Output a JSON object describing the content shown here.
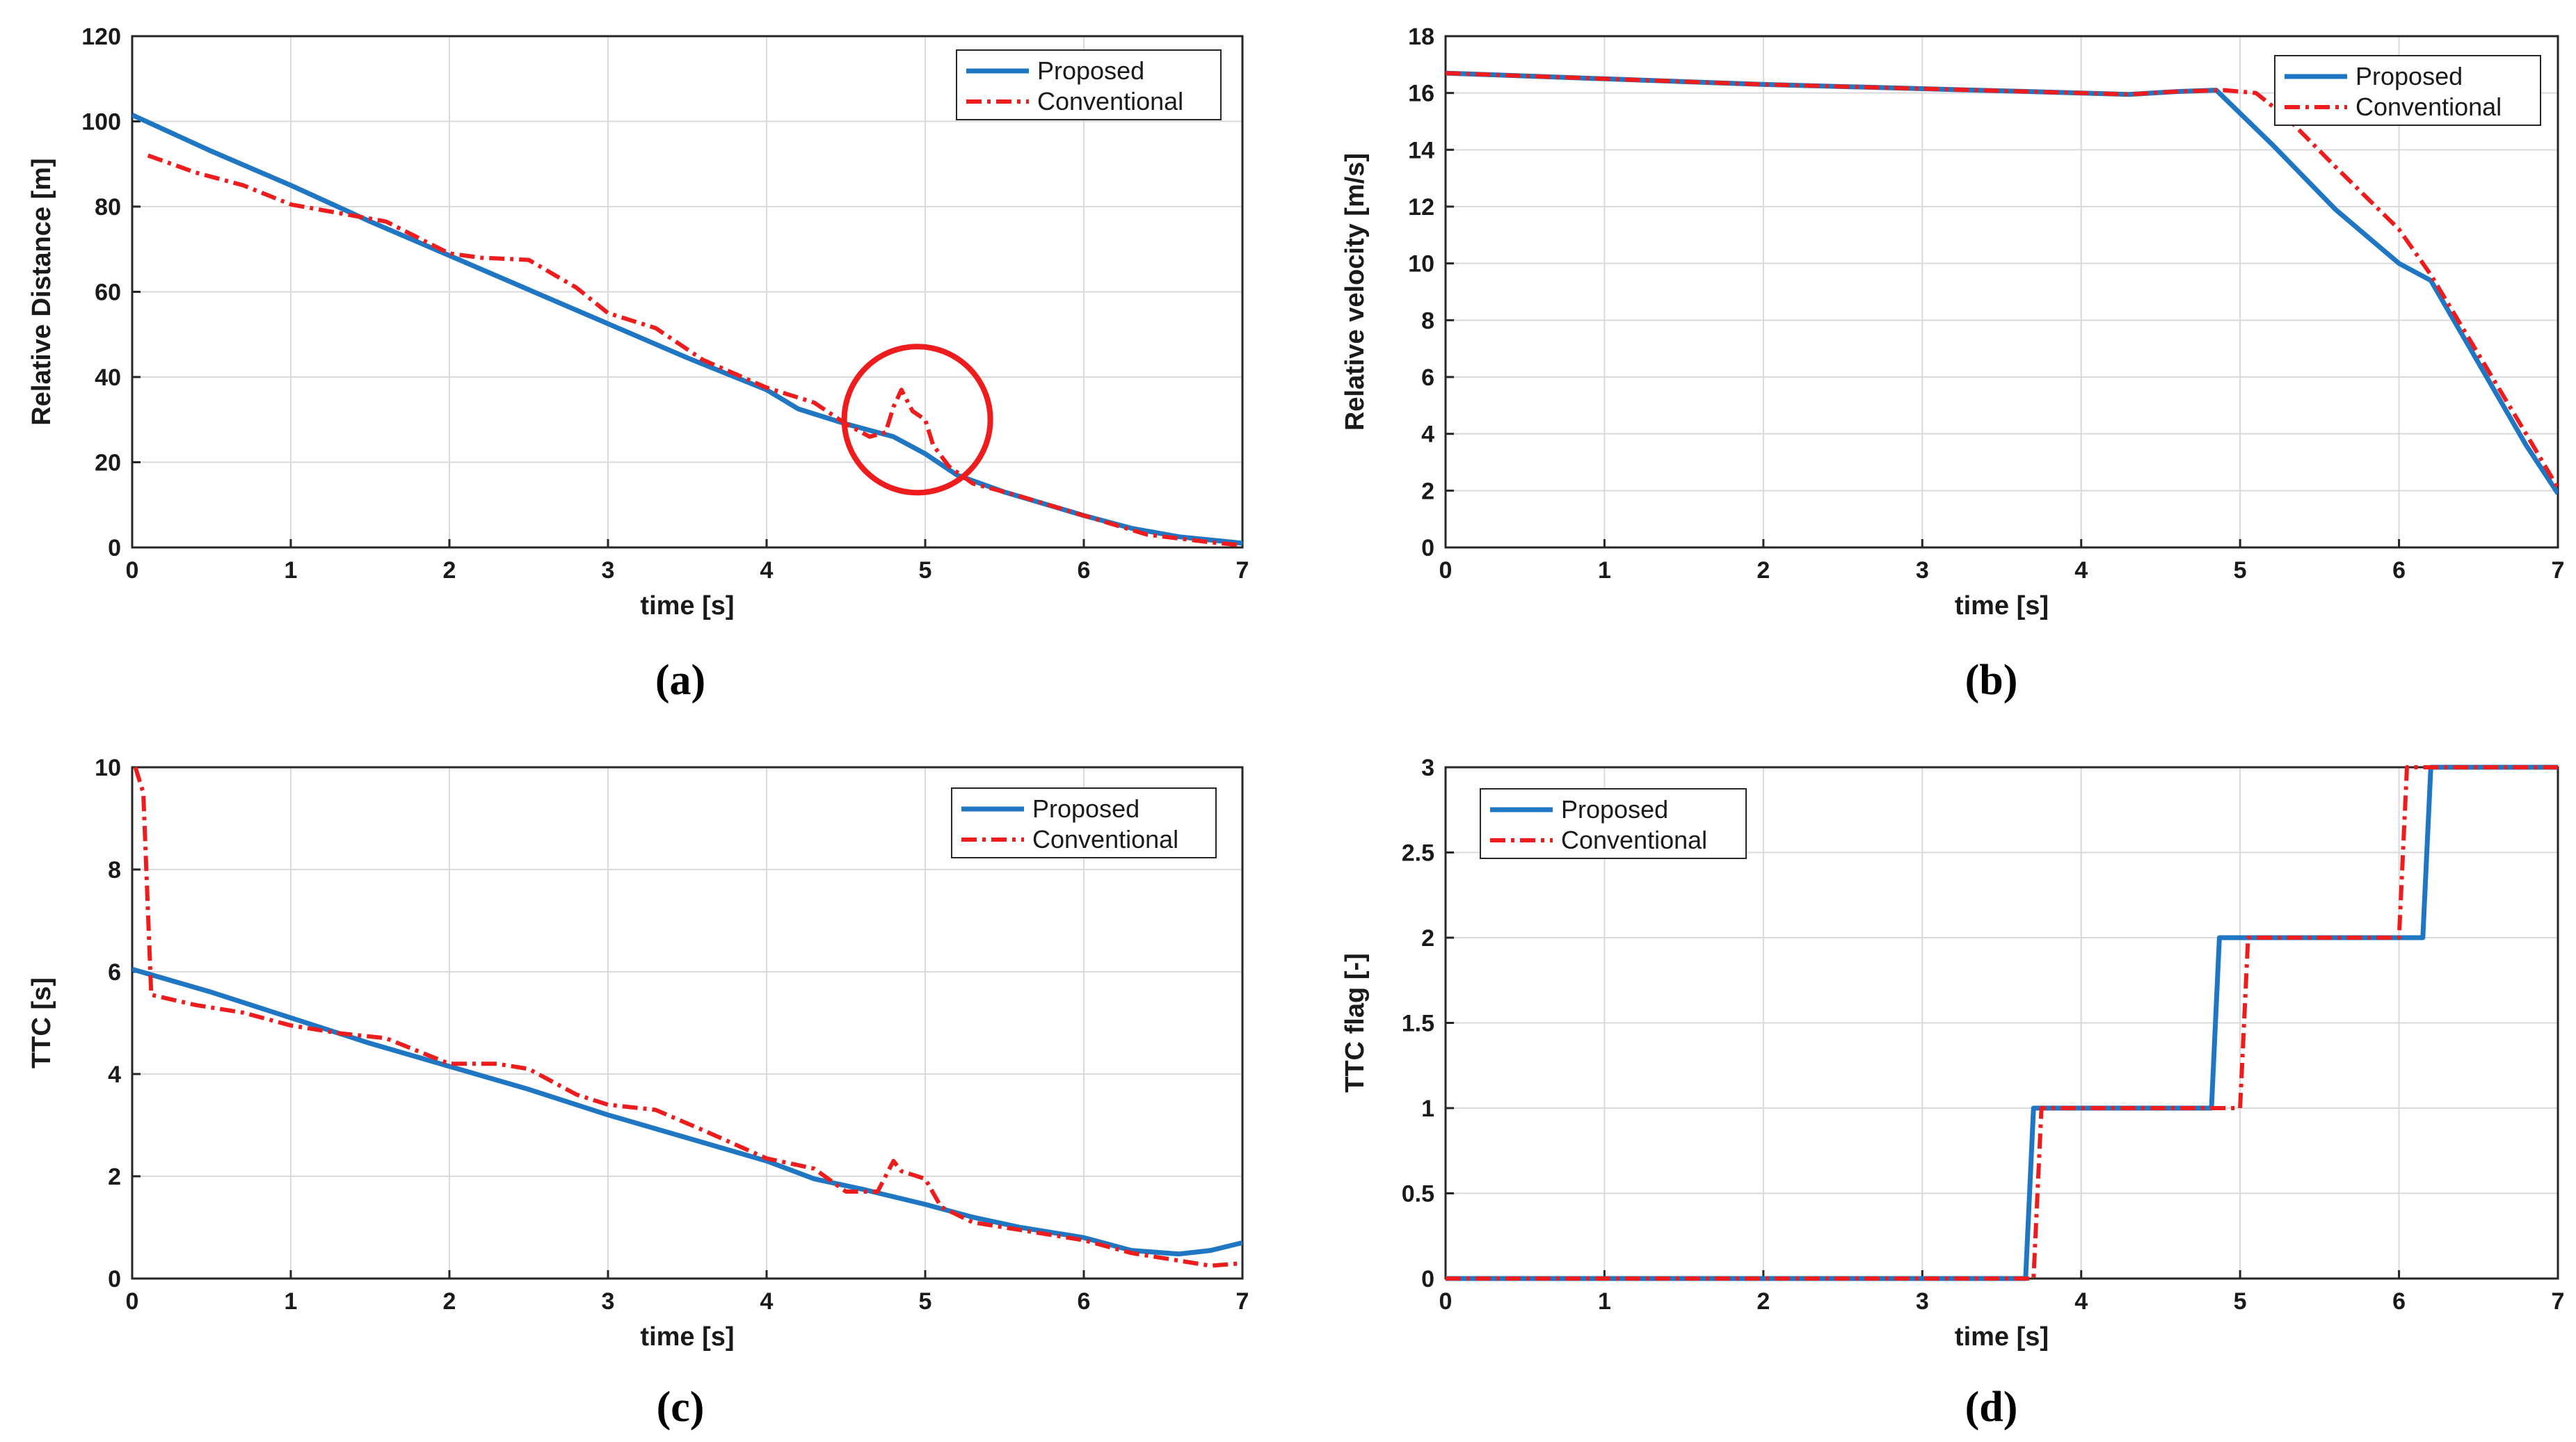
{
  "colors": {
    "proposed": "#1f77c4",
    "conventional": "#ee1c1c",
    "grid": "#d9d9d9",
    "axis": "#262626",
    "highlight": "#ee1c1c"
  },
  "chart_data": [
    {
      "id": "a",
      "type": "line",
      "caption": "(a)",
      "xlabel": "time [s]",
      "ylabel": "Relative Distance [m]",
      "xlim": [
        0,
        7
      ],
      "ylim": [
        0,
        120
      ],
      "xticks": [
        0,
        1,
        2,
        3,
        4,
        5,
        6,
        7
      ],
      "yticks": [
        0,
        20,
        40,
        60,
        80,
        100,
        120
      ],
      "grid": true,
      "legend": "top-right",
      "highlight": {
        "shape": "circle",
        "center": [
          4.95,
          30
        ]
      },
      "series": [
        {
          "name": "Proposed",
          "style": "solid",
          "x": [
            0,
            0.5,
            1,
            1.5,
            2,
            2.5,
            3,
            3.5,
            4,
            4.2,
            4.5,
            4.8,
            5,
            5.2,
            5.5,
            6,
            6.3,
            6.6,
            7
          ],
          "y": [
            101.5,
            93,
            85,
            76.5,
            68.5,
            60.5,
            52.5,
            44.5,
            37,
            32.5,
            29,
            26,
            22,
            17,
            13,
            7.5,
            4.5,
            2.5,
            1
          ]
        },
        {
          "name": "Conventional",
          "style": "dashdot",
          "x": [
            0.1,
            0.4,
            0.7,
            1,
            1.3,
            1.6,
            2,
            2.2,
            2.5,
            2.8,
            3,
            3.3,
            3.6,
            4,
            4.3,
            4.5,
            4.65,
            4.75,
            4.8,
            4.85,
            4.92,
            5.0,
            5.05,
            5.15,
            5.3,
            5.6,
            6,
            6.4,
            6.8,
            7
          ],
          "y": [
            92,
            88,
            85,
            80.5,
            78.5,
            76.5,
            69,
            68,
            67.5,
            61,
            55,
            51.5,
            44,
            37.5,
            34,
            29,
            26,
            27,
            33,
            37,
            32,
            30,
            24,
            19,
            15,
            12,
            7.5,
            3,
            1.2,
            0.5
          ]
        }
      ]
    },
    {
      "id": "b",
      "type": "line",
      "caption": "(b)",
      "xlabel": "time [s]",
      "ylabel": "Relative velocity [m/s]",
      "xlim": [
        0,
        7
      ],
      "ylim": [
        0,
        18
      ],
      "xticks": [
        0,
        1,
        2,
        3,
        4,
        5,
        6,
        7
      ],
      "yticks": [
        0,
        2,
        4,
        6,
        8,
        10,
        12,
        14,
        16,
        18
      ],
      "grid": true,
      "legend": "top-right",
      "series": [
        {
          "name": "Proposed",
          "style": "solid",
          "x": [
            0,
            1,
            2,
            3,
            4,
            4.3,
            4.6,
            4.85,
            5.2,
            5.6,
            6.0,
            6.2,
            6.5,
            6.8,
            7
          ],
          "y": [
            16.7,
            16.5,
            16.3,
            16.15,
            16.0,
            15.95,
            16.05,
            16.1,
            14.2,
            11.9,
            10.0,
            9.4,
            6.5,
            3.6,
            1.9
          ]
        },
        {
          "name": "Conventional",
          "style": "dashdot",
          "x": [
            0,
            1,
            2,
            3,
            4,
            4.3,
            4.6,
            4.9,
            5.1,
            5.3,
            5.6,
            6.0,
            6.2,
            6.5,
            6.8,
            7
          ],
          "y": [
            16.7,
            16.5,
            16.3,
            16.15,
            16.0,
            15.95,
            16.05,
            16.1,
            16.0,
            15.1,
            13.4,
            11.2,
            9.6,
            6.8,
            4.0,
            2.1
          ]
        }
      ]
    },
    {
      "id": "c",
      "type": "line",
      "caption": "(c)",
      "xlabel": "time [s]",
      "ylabel": "TTC [s]",
      "xlim": [
        0,
        7
      ],
      "ylim": [
        0,
        10
      ],
      "xticks": [
        0,
        1,
        2,
        3,
        4,
        5,
        6,
        7
      ],
      "yticks": [
        0,
        2,
        4,
        6,
        8,
        10
      ],
      "grid": true,
      "legend": "top-right",
      "series": [
        {
          "name": "Proposed",
          "style": "solid",
          "x": [
            0,
            0.5,
            1,
            1.5,
            2,
            2.5,
            3,
            3.5,
            4,
            4.3,
            4.6,
            5,
            5.3,
            5.6,
            6,
            6.3,
            6.6,
            6.8,
            7
          ],
          "y": [
            6.05,
            5.6,
            5.1,
            4.6,
            4.15,
            3.7,
            3.2,
            2.75,
            2.3,
            1.95,
            1.75,
            1.45,
            1.2,
            1.0,
            0.8,
            0.55,
            0.48,
            0.55,
            0.7
          ]
        },
        {
          "name": "Conventional",
          "style": "dashdot",
          "x": [
            0.02,
            0.07,
            0.12,
            0.4,
            0.7,
            1,
            1.3,
            1.6,
            2,
            2.3,
            2.5,
            2.8,
            3,
            3.3,
            3.6,
            4,
            4.3,
            4.5,
            4.7,
            4.8,
            4.85,
            4.9,
            5.0,
            5.1,
            5.3,
            5.6,
            6,
            6.3,
            6.6,
            6.8,
            7
          ],
          "y": [
            10.0,
            9.5,
            5.55,
            5.35,
            5.2,
            4.95,
            4.8,
            4.7,
            4.2,
            4.2,
            4.1,
            3.6,
            3.4,
            3.3,
            2.9,
            2.35,
            2.15,
            1.7,
            1.7,
            2.3,
            2.1,
            2.05,
            1.95,
            1.4,
            1.1,
            0.95,
            0.75,
            0.5,
            0.35,
            0.25,
            0.3
          ]
        }
      ]
    },
    {
      "id": "d",
      "type": "line",
      "caption": "(d)",
      "xlabel": "time [s]",
      "ylabel": "TTC flag [-]",
      "xlim": [
        0,
        7
      ],
      "ylim": [
        0,
        3
      ],
      "xticks": [
        0,
        1,
        2,
        3,
        4,
        5,
        6,
        7
      ],
      "yticks": [
        0,
        0.5,
        1,
        1.5,
        2,
        2.5,
        3
      ],
      "grid": true,
      "legend": "top-left",
      "series": [
        {
          "name": "Proposed",
          "style": "solid",
          "x": [
            0,
            3.65,
            3.7,
            4.82,
            4.87,
            6.15,
            6.2,
            7
          ],
          "y": [
            0,
            0,
            1,
            1,
            2,
            2,
            3,
            3
          ]
        },
        {
          "name": "Conventional",
          "style": "dashdot",
          "x": [
            0,
            3.7,
            3.75,
            5.0,
            5.05,
            6.0,
            6.05,
            7
          ],
          "y": [
            0,
            0,
            1,
            1,
            2,
            2,
            3,
            3
          ]
        }
      ]
    }
  ]
}
